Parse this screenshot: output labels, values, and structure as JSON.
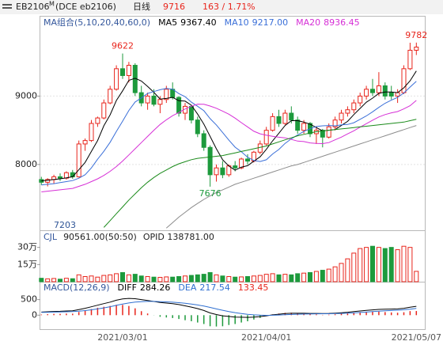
{
  "header": {
    "symbol": "EB2106",
    "sup": "M",
    "code": "(DCE eb2106)",
    "period": "日线",
    "change": "163 / 1.71%"
  },
  "chart_data": [
    {
      "type": "candlestick",
      "legend_title": "MA组合(5,10,20,40,60,0)",
      "up_color": "#e8251c",
      "down_color": "#1d9a3c",
      "ylim": [
        7050,
        10150
      ],
      "yticks": [
        8000,
        9000
      ],
      "grid": true,
      "annotations": [
        "7203"
      ],
      "open": [
        7780,
        7740,
        7780,
        7820,
        7800,
        7880,
        7820,
        8300,
        8350,
        8600,
        8680,
        8900,
        9100,
        9400,
        9300,
        9450,
        9050,
        8900,
        9000,
        8880,
        8950,
        9100,
        8980,
        8750,
        8850,
        8650,
        8450,
        8250,
        7850,
        7950,
        7850,
        7980,
        7950,
        8080,
        8050,
        8180,
        8300,
        8500,
        8700,
        8600,
        8750,
        8650,
        8500,
        8600,
        8450,
        8500,
        8400,
        8550,
        8650,
        8750,
        8800,
        8900,
        9000,
        9100,
        9050,
        9150,
        9050,
        9000,
        9050,
        9400,
        9670
      ],
      "high": [
        7820,
        7800,
        7850,
        7870,
        7900,
        7920,
        8350,
        8380,
        8650,
        8700,
        8950,
        9150,
        9450,
        9622,
        9500,
        9480,
        9150,
        9050,
        9100,
        9000,
        9150,
        9200,
        9000,
        8900,
        8870,
        8700,
        8500,
        8280,
        8000,
        8050,
        8000,
        8050,
        8100,
        8150,
        8200,
        8350,
        8550,
        8750,
        8800,
        8800,
        8850,
        8700,
        8650,
        8620,
        8550,
        8520,
        8600,
        8700,
        8800,
        8850,
        8950,
        9050,
        9150,
        9250,
        9350,
        9200,
        9150,
        9100,
        9450,
        9780,
        9782
      ],
      "low": [
        7700,
        7680,
        7720,
        7760,
        7780,
        7790,
        7810,
        8200,
        8330,
        8550,
        8660,
        8880,
        9080,
        9250,
        9200,
        9000,
        8850,
        8800,
        8850,
        8750,
        8900,
        8950,
        8700,
        8650,
        8600,
        8400,
        8200,
        7676,
        7750,
        7800,
        7820,
        7900,
        7930,
        8000,
        8030,
        8150,
        8280,
        8480,
        8550,
        8580,
        8600,
        8450,
        8450,
        8400,
        8300,
        8250,
        8380,
        8500,
        8600,
        8700,
        8750,
        8850,
        8950,
        9000,
        9000,
        8950,
        8950,
        8900,
        9030,
        9380,
        9600
      ],
      "close": [
        7740,
        7780,
        7820,
        7800,
        7880,
        7820,
        8300,
        8350,
        8600,
        8680,
        8900,
        9100,
        9400,
        9300,
        9450,
        9050,
        8900,
        9000,
        8880,
        8950,
        9100,
        8980,
        8750,
        8850,
        8650,
        8450,
        8250,
        7850,
        7950,
        7850,
        7980,
        7950,
        8080,
        8050,
        8180,
        8300,
        8500,
        8700,
        8600,
        8750,
        8650,
        8500,
        8600,
        8450,
        8500,
        8400,
        8550,
        8650,
        8750,
        8800,
        8900,
        9000,
        9100,
        9050,
        9150,
        9000,
        9000,
        9050,
        9400,
        9670,
        9716
      ],
      "series": [
        {
          "name": "MA5",
          "color": "#000000",
          "values": [
            7760,
            7770,
            7780,
            7790,
            7804,
            7820,
            7924,
            8030,
            8190,
            8350,
            8566,
            8726,
            8936,
            9076,
            9230,
            9260,
            9220,
            9140,
            9056,
            8956,
            8966,
            8982,
            8932,
            8926,
            8866,
            8736,
            8590,
            8410,
            8230,
            8070,
            7976,
            7916,
            7962,
            7982,
            8048,
            8112,
            8222,
            8346,
            8456,
            8570,
            8640,
            8640,
            8620,
            8590,
            8540,
            8490,
            8500,
            8510,
            8570,
            8630,
            8730,
            8820,
            8910,
            8970,
            9040,
            9060,
            9060,
            9050,
            9120,
            9224,
            9367.4
          ],
          "value_labels": [
            null,
            null,
            null,
            null,
            null,
            null,
            null,
            null,
            null,
            null,
            null,
            null,
            null,
            null,
            null,
            null,
            null,
            null,
            null,
            null,
            null,
            null,
            null,
            null,
            null,
            null,
            null,
            null,
            null,
            null,
            null,
            null,
            null,
            null,
            null,
            null,
            null,
            null,
            null,
            null,
            null,
            null,
            null,
            null,
            null,
            null,
            null,
            null,
            null,
            null,
            null,
            null,
            null,
            null,
            null,
            null,
            null,
            null,
            null,
            null,
            "9367.40"
          ]
        },
        {
          "name": "MA10",
          "color": "#3a6fd8",
          "values": [
            7700,
            7710,
            7720,
            7735,
            7750,
            7765,
            7800,
            7850,
            7950,
            8077,
            8193,
            8325,
            8483,
            8633,
            8790,
            8913,
            8973,
            9038,
            9066,
            9093,
            9113,
            9101,
            9036,
            8991,
            8911,
            8851,
            8786,
            8671,
            8578,
            8468,
            8356,
            8253,
            8186,
            8106,
            8059,
            8044,
            8069,
            8154,
            8219,
            8309,
            8376,
            8431,
            8483,
            8523,
            8555,
            8565,
            8570,
            8565,
            8580,
            8585,
            8610,
            8660,
            8710,
            8770,
            8835,
            8895,
            8940,
            8980,
            9045,
            9132,
            9217
          ],
          "value_labels": [
            null,
            null,
            null,
            null,
            null,
            null,
            null,
            null,
            null,
            null,
            null,
            null,
            null,
            null,
            null,
            null,
            null,
            null,
            null,
            null,
            null,
            null,
            null,
            null,
            null,
            null,
            null,
            null,
            null,
            null,
            null,
            null,
            null,
            null,
            null,
            null,
            null,
            null,
            null,
            null,
            null,
            null,
            null,
            null,
            null,
            null,
            null,
            null,
            null,
            null,
            null,
            null,
            null,
            null,
            null,
            null,
            null,
            null,
            null,
            null,
            "9217.00"
          ]
        },
        {
          "name": "MA20",
          "color": "#d62fd6",
          "values": [
            7600,
            7610,
            7620,
            7630,
            7640,
            7650,
            7680,
            7710,
            7750,
            7790,
            7840,
            7900,
            7970,
            8050,
            8140,
            8230,
            8320,
            8410,
            8500,
            8585,
            8653,
            8713,
            8760,
            8812,
            8851,
            8882,
            8880,
            8855,
            8822,
            8781,
            8735,
            8677,
            8611,
            8549,
            8485,
            8448,
            8428,
            8413,
            8399,
            8389,
            8366,
            8342,
            8335,
            8315,
            8307,
            8305,
            8320,
            8360,
            8400,
            8447,
            8493,
            8546,
            8597,
            8647,
            8695,
            8730,
            8755,
            8773,
            8813,
            8859,
            8936.45
          ]
        },
        {
          "color": "#1a8a1a",
          "values": [
            null,
            null,
            null,
            null,
            null,
            null,
            null,
            null,
            null,
            null,
            7080,
            7180,
            7280,
            7380,
            7480,
            7570,
            7660,
            7740,
            7810,
            7870,
            7920,
            7970,
            8010,
            8040,
            8070,
            8090,
            8100,
            8110,
            8120,
            8130,
            8150,
            8170,
            8190,
            8210,
            8230,
            8250,
            8270,
            8300,
            8330,
            8360,
            8390,
            8420,
            8440,
            8460,
            8480,
            8490,
            8500,
            8510,
            8520,
            8530,
            8540,
            8550,
            8560,
            8570,
            8580,
            8590,
            8600,
            8610,
            8620,
            8640,
            8660
          ]
        },
        {
          "color": "#8c8c8c",
          "values": [
            null,
            null,
            null,
            null,
            null,
            null,
            null,
            null,
            null,
            null,
            null,
            null,
            null,
            null,
            null,
            null,
            null,
            null,
            null,
            null,
            7070,
            7150,
            7230,
            7300,
            7370,
            7430,
            7490,
            7540,
            7590,
            7630,
            7670,
            7710,
            7740,
            7770,
            7800,
            7830,
            7860,
            7890,
            7920,
            7950,
            7980,
            8000,
            8030,
            8060,
            8090,
            8120,
            8150,
            8180,
            8210,
            8240,
            8270,
            8300,
            8330,
            8360,
            8390,
            8420,
            8450,
            8480,
            8510,
            8540,
            8570
          ]
        }
      ]
    },
    {
      "type": "bar",
      "title": "CJL",
      "ratio": "(50:50)",
      "extra": "OPID 138781.00",
      "ylim": [
        0,
        436000
      ],
      "yticks": [
        {
          "value": 300000,
          "label": "30万"
        },
        {
          "value": 150000,
          "label": "15万"
        }
      ],
      "values": [
        30000,
        25000,
        28000,
        22000,
        30000,
        26000,
        60000,
        45000,
        50000,
        40000,
        55000,
        60000,
        70000,
        80000,
        60000,
        65000,
        50000,
        45000,
        40000,
        38000,
        42000,
        40000,
        45000,
        50000,
        55000,
        60000,
        65000,
        80000,
        60000,
        50000,
        45000,
        40000,
        42000,
        45000,
        50000,
        55000,
        65000,
        70000,
        60000,
        65000,
        60000,
        70000,
        75000,
        80000,
        90000,
        100000,
        110000,
        130000,
        160000,
        200000,
        250000,
        290000,
        300000,
        310000,
        300000,
        290000,
        300000,
        280000,
        310000,
        300000,
        90561
      ],
      "value_labels": [
        null,
        null,
        null,
        null,
        null,
        null,
        null,
        null,
        null,
        null,
        null,
        null,
        null,
        null,
        null,
        null,
        null,
        null,
        null,
        null,
        null,
        null,
        null,
        null,
        null,
        null,
        null,
        null,
        null,
        null,
        null,
        null,
        null,
        null,
        null,
        null,
        null,
        null,
        null,
        null,
        null,
        null,
        null,
        null,
        null,
        null,
        null,
        null,
        null,
        null,
        null,
        null,
        null,
        null,
        null,
        null,
        null,
        null,
        null,
        null,
        "90561.00"
      ]
    },
    {
      "type": "macd",
      "title": "MACD(12,26,9)",
      "ylim": [
        -450,
        1050
      ],
      "yticks": [
        500,
        0
      ],
      "categories": [
        null,
        null,
        null,
        null,
        null,
        null,
        null,
        null,
        null,
        null,
        null,
        null,
        null,
        "2021/03/01",
        null,
        null,
        null,
        null,
        null,
        null,
        null,
        null,
        null,
        null,
        null,
        null,
        null,
        null,
        null,
        null,
        null,
        null,
        null,
        null,
        null,
        null,
        "2021/04/01",
        null,
        null,
        null,
        null,
        null,
        null,
        null,
        null,
        null,
        null,
        null,
        null,
        null,
        null,
        null,
        null,
        null,
        null,
        null,
        null,
        null,
        null,
        null,
        "2021/05/07"
      ],
      "series": [
        {
          "name": "DIFF",
          "color": "#000000",
          "values": [
            100,
            110,
            120,
            125,
            135,
            140,
            180,
            220,
            270,
            320,
            370,
            420,
            480,
            520,
            540,
            530,
            500,
            470,
            440,
            410,
            390,
            370,
            340,
            300,
            260,
            210,
            150,
            70,
            20,
            -20,
            -40,
            -60,
            -65,
            -70,
            -60,
            -45,
            -20,
            10,
            30,
            50,
            60,
            60,
            60,
            55,
            55,
            50,
            55,
            65,
            80,
            95,
            115,
            135,
            155,
            170,
            185,
            190,
            195,
            200,
            220,
            255,
            284.26
          ]
        },
        {
          "name": "DEA",
          "color": "#2f6fd0",
          "values": [
            90,
            94,
            99,
            104,
            110,
            116,
            129,
            147,
            172,
            201,
            235,
            272,
            314,
            355,
            392,
            420,
            436,
            443,
            442,
            436,
            427,
            416,
            401,
            381,
            357,
            328,
            292,
            248,
            202,
            158,
            118,
            82,
            53,
            28,
            10,
            -1,
            -5,
            -2,
            4,
            13,
            22,
            30,
            36,
            40,
            43,
            45,
            47,
            51,
            57,
            64,
            74,
            86,
            100,
            114,
            128,
            140,
            151,
            161,
            173,
            190,
            217.54
          ]
        }
      ],
      "histogram": {
        "up_color": "#e8251c",
        "down_color": "#1d9a3c",
        "values": [
          20,
          32,
          42,
          42,
          50,
          48,
          102,
          146,
          196,
          238,
          270,
          296,
          332,
          330,
          296,
          220,
          128,
          54,
          -4,
          -52,
          -74,
          -92,
          -122,
          -162,
          -194,
          -236,
          -284,
          -356,
          -364,
          -356,
          -316,
          -284,
          -236,
          -196,
          -140,
          -88,
          -30,
          24,
          52,
          74,
          76,
          60,
          48,
          30,
          24,
          10,
          16,
          28,
          46,
          62,
          82,
          98,
          110,
          112,
          114,
          100,
          88,
          78,
          94,
          130,
          133.45
        ]
      }
    }
  ]
}
